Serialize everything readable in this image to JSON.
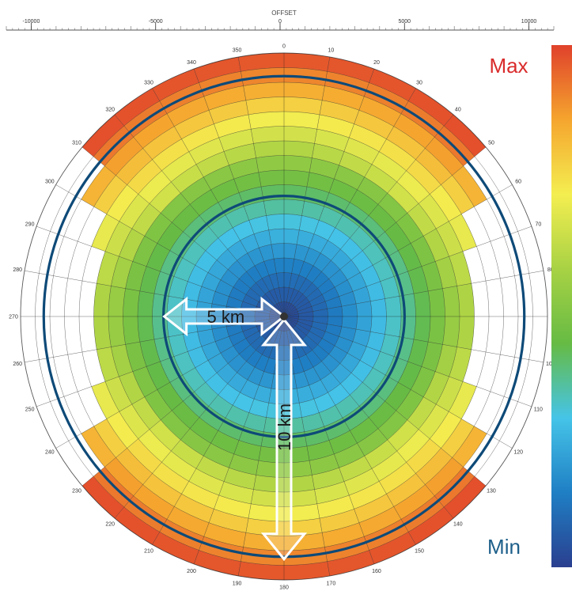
{
  "chart_data": {
    "type": "heatmap",
    "title": "",
    "x_axis": {
      "title": "OFFSET",
      "range": [
        -11000,
        11000
      ],
      "ticks": [
        -10000,
        -5000,
        0,
        5000,
        10000
      ],
      "tick_labels": [
        "-10000",
        "-5000",
        "0",
        "5000",
        "10000"
      ]
    },
    "azimuth_labels": [
      "0",
      "10",
      "20",
      "30",
      "40",
      "50",
      "60",
      "70",
      "80",
      "90",
      "100",
      "110",
      "120",
      "130",
      "140",
      "150",
      "160",
      "170",
      "180",
      "190",
      "200",
      "210",
      "220",
      "230",
      "240",
      "250",
      "260",
      "270",
      "280",
      "290",
      "300",
      "310",
      "320",
      "330",
      "340",
      "350"
    ],
    "offset_range_m": [
      0,
      11000
    ],
    "rings": 18,
    "sectors": 36,
    "color_scale": {
      "max_label": "Max",
      "min_label": "Min",
      "max_color": "#d92b2b",
      "min_color": "#1d5f8a",
      "stops": [
        "#2a3f8f",
        "#1f7fc4",
        "#45c4e8",
        "#66bb44",
        "#a8d244",
        "#f4ee50",
        "#f5a52e",
        "#e0412b"
      ]
    },
    "overlay_circles_km": [
      5,
      10
    ],
    "overlay_circle_color": "#0e4a78",
    "annotations": [
      {
        "label": "5 km",
        "orientation": "horizontal"
      },
      {
        "label": "10 km",
        "orientation": "vertical"
      }
    ]
  }
}
